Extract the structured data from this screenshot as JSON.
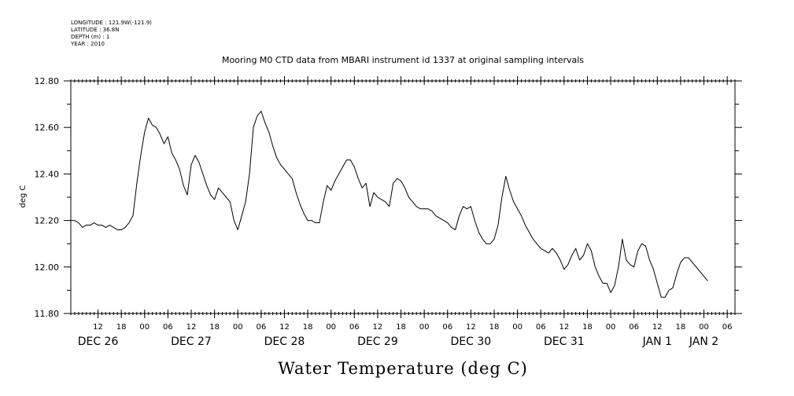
{
  "header": {
    "meta_lines": [
      "LONGITUDE : 121.9W(-121.9)",
      "LATITUDE : 36.8N",
      "DEPTH (m) : 1",
      "YEAR : 2010"
    ],
    "title": "Mooring M0 CTD data from MBARI instrument id 1337 at original sampling intervals"
  },
  "chart_data": {
    "type": "line",
    "title": "Mooring M0 CTD data from MBARI instrument id 1337 at original sampling intervals",
    "ylabel": "deg C",
    "xlabel": "Water Temperature (deg C)",
    "ylim": [
      11.8,
      12.8
    ],
    "yticks": [
      {
        "value": 12.8,
        "label": "12.80"
      },
      {
        "value": 12.6,
        "label": "12.60"
      },
      {
        "value": 12.4,
        "label": "12.40"
      },
      {
        "value": 12.2,
        "label": "12.20"
      },
      {
        "value": 12.0,
        "label": "12.00"
      },
      {
        "value": 11.8,
        "label": "11.80"
      }
    ],
    "xlim": [
      "2010-12-26 05:00",
      "2011-01-02 08:00"
    ],
    "hour_ticks": [
      {
        "t": "2010-12-26 12:00",
        "label": "12"
      },
      {
        "t": "2010-12-26 18:00",
        "label": "18"
      },
      {
        "t": "2010-12-27 00:00",
        "label": "00"
      },
      {
        "t": "2010-12-27 06:00",
        "label": "06"
      },
      {
        "t": "2010-12-27 12:00",
        "label": "12"
      },
      {
        "t": "2010-12-27 18:00",
        "label": "18"
      },
      {
        "t": "2010-12-28 00:00",
        "label": "00"
      },
      {
        "t": "2010-12-28 06:00",
        "label": "06"
      },
      {
        "t": "2010-12-28 12:00",
        "label": "12"
      },
      {
        "t": "2010-12-28 18:00",
        "label": "18"
      },
      {
        "t": "2010-12-29 00:00",
        "label": "00"
      },
      {
        "t": "2010-12-29 06:00",
        "label": "06"
      },
      {
        "t": "2010-12-29 12:00",
        "label": "12"
      },
      {
        "t": "2010-12-29 18:00",
        "label": "18"
      },
      {
        "t": "2010-12-30 00:00",
        "label": "00"
      },
      {
        "t": "2010-12-30 06:00",
        "label": "06"
      },
      {
        "t": "2010-12-30 12:00",
        "label": "12"
      },
      {
        "t": "2010-12-30 18:00",
        "label": "18"
      },
      {
        "t": "2010-12-31 00:00",
        "label": "00"
      },
      {
        "t": "2010-12-31 06:00",
        "label": "06"
      },
      {
        "t": "2010-12-31 12:00",
        "label": "12"
      },
      {
        "t": "2010-12-31 18:00",
        "label": "18"
      },
      {
        "t": "2011-01-01 00:00",
        "label": "00"
      },
      {
        "t": "2011-01-01 06:00",
        "label": "06"
      },
      {
        "t": "2011-01-01 12:00",
        "label": "12"
      },
      {
        "t": "2011-01-01 18:00",
        "label": "18"
      },
      {
        "t": "2011-01-02 00:00",
        "label": "00"
      },
      {
        "t": "2011-01-02 06:00",
        "label": "06"
      }
    ],
    "day_labels": [
      {
        "t": "2010-12-26 12:00",
        "label": "DEC 26"
      },
      {
        "t": "2010-12-27 12:00",
        "label": "DEC 27"
      },
      {
        "t": "2010-12-28 12:00",
        "label": "DEC 28"
      },
      {
        "t": "2010-12-29 12:00",
        "label": "DEC 29"
      },
      {
        "t": "2010-12-30 12:00",
        "label": "DEC 30"
      },
      {
        "t": "2010-12-31 12:00",
        "label": "DEC 31"
      },
      {
        "t": "2011-01-01 12:00",
        "label": "JAN 1"
      },
      {
        "t": "2011-01-02 00:00",
        "label": "JAN 2"
      }
    ],
    "grid": false,
    "series": [
      {
        "color": "#000000",
        "points": [
          [
            "2010-12-26 05:00",
            12.2
          ],
          [
            "2010-12-26 06:00",
            12.2
          ],
          [
            "2010-12-26 07:00",
            12.19
          ],
          [
            "2010-12-26 08:00",
            12.17
          ],
          [
            "2010-12-26 09:00",
            12.18
          ],
          [
            "2010-12-26 10:00",
            12.18
          ],
          [
            "2010-12-26 11:00",
            12.19
          ],
          [
            "2010-12-26 12:00",
            12.18
          ],
          [
            "2010-12-26 13:00",
            12.18
          ],
          [
            "2010-12-26 14:00",
            12.17
          ],
          [
            "2010-12-26 15:00",
            12.18
          ],
          [
            "2010-12-26 16:00",
            12.17
          ],
          [
            "2010-12-26 17:00",
            12.16
          ],
          [
            "2010-12-26 18:00",
            12.16
          ],
          [
            "2010-12-26 19:00",
            12.17
          ],
          [
            "2010-12-26 20:00",
            12.19
          ],
          [
            "2010-12-26 21:00",
            12.22
          ],
          [
            "2010-12-26 22:00",
            12.36
          ],
          [
            "2010-12-26 23:00",
            12.48
          ],
          [
            "2010-12-27 00:00",
            12.58
          ],
          [
            "2010-12-27 01:00",
            12.64
          ],
          [
            "2010-12-27 02:00",
            12.61
          ],
          [
            "2010-12-27 03:00",
            12.6
          ],
          [
            "2010-12-27 04:00",
            12.57
          ],
          [
            "2010-12-27 05:00",
            12.53
          ],
          [
            "2010-12-27 06:00",
            12.56
          ],
          [
            "2010-12-27 07:00",
            12.49
          ],
          [
            "2010-12-27 08:00",
            12.46
          ],
          [
            "2010-12-27 09:00",
            12.42
          ],
          [
            "2010-12-27 10:00",
            12.35
          ],
          [
            "2010-12-27 11:00",
            12.31
          ],
          [
            "2010-12-27 12:00",
            12.44
          ],
          [
            "2010-12-27 13:00",
            12.48
          ],
          [
            "2010-12-27 14:00",
            12.45
          ],
          [
            "2010-12-27 15:00",
            12.4
          ],
          [
            "2010-12-27 16:00",
            12.35
          ],
          [
            "2010-12-27 17:00",
            12.31
          ],
          [
            "2010-12-27 18:00",
            12.29
          ],
          [
            "2010-12-27 19:00",
            12.34
          ],
          [
            "2010-12-27 20:00",
            12.32
          ],
          [
            "2010-12-27 21:00",
            12.3
          ],
          [
            "2010-12-27 22:00",
            12.28
          ],
          [
            "2010-12-27 23:00",
            12.2
          ],
          [
            "2010-12-28 00:00",
            12.16
          ],
          [
            "2010-12-28 01:00",
            12.22
          ],
          [
            "2010-12-28 02:00",
            12.28
          ],
          [
            "2010-12-28 03:00",
            12.4
          ],
          [
            "2010-12-28 04:00",
            12.6
          ],
          [
            "2010-12-28 05:00",
            12.65
          ],
          [
            "2010-12-28 06:00",
            12.67
          ],
          [
            "2010-12-28 07:00",
            12.62
          ],
          [
            "2010-12-28 08:00",
            12.58
          ],
          [
            "2010-12-28 09:00",
            12.52
          ],
          [
            "2010-12-28 10:00",
            12.47
          ],
          [
            "2010-12-28 11:00",
            12.44
          ],
          [
            "2010-12-28 12:00",
            12.42
          ],
          [
            "2010-12-28 13:00",
            12.4
          ],
          [
            "2010-12-28 14:00",
            12.38
          ],
          [
            "2010-12-28 15:00",
            12.32
          ],
          [
            "2010-12-28 16:00",
            12.27
          ],
          [
            "2010-12-28 17:00",
            12.23
          ],
          [
            "2010-12-28 18:00",
            12.2
          ],
          [
            "2010-12-28 19:00",
            12.2
          ],
          [
            "2010-12-28 20:00",
            12.19
          ],
          [
            "2010-12-28 21:00",
            12.19
          ],
          [
            "2010-12-28 22:00",
            12.28
          ],
          [
            "2010-12-28 23:00",
            12.35
          ],
          [
            "2010-12-29 00:00",
            12.33
          ],
          [
            "2010-12-29 01:00",
            12.37
          ],
          [
            "2010-12-29 02:00",
            12.4
          ],
          [
            "2010-12-29 03:00",
            12.43
          ],
          [
            "2010-12-29 04:00",
            12.46
          ],
          [
            "2010-12-29 05:00",
            12.46
          ],
          [
            "2010-12-29 06:00",
            12.43
          ],
          [
            "2010-12-29 07:00",
            12.38
          ],
          [
            "2010-12-29 08:00",
            12.34
          ],
          [
            "2010-12-29 09:00",
            12.36
          ],
          [
            "2010-12-29 10:00",
            12.26
          ],
          [
            "2010-12-29 11:00",
            12.32
          ],
          [
            "2010-12-29 12:00",
            12.3
          ],
          [
            "2010-12-29 13:00",
            12.29
          ],
          [
            "2010-12-29 14:00",
            12.28
          ],
          [
            "2010-12-29 15:00",
            12.26
          ],
          [
            "2010-12-29 16:00",
            12.36
          ],
          [
            "2010-12-29 17:00",
            12.38
          ],
          [
            "2010-12-29 18:00",
            12.37
          ],
          [
            "2010-12-29 19:00",
            12.34
          ],
          [
            "2010-12-29 20:00",
            12.3
          ],
          [
            "2010-12-29 21:00",
            12.28
          ],
          [
            "2010-12-29 22:00",
            12.26
          ],
          [
            "2010-12-29 23:00",
            12.25
          ],
          [
            "2010-12-30 00:00",
            12.25
          ],
          [
            "2010-12-30 01:00",
            12.25
          ],
          [
            "2010-12-30 02:00",
            12.24
          ],
          [
            "2010-12-30 03:00",
            12.22
          ],
          [
            "2010-12-30 04:00",
            12.21
          ],
          [
            "2010-12-30 05:00",
            12.2
          ],
          [
            "2010-12-30 06:00",
            12.19
          ],
          [
            "2010-12-30 07:00",
            12.17
          ],
          [
            "2010-12-30 08:00",
            12.16
          ],
          [
            "2010-12-30 09:00",
            12.22
          ],
          [
            "2010-12-30 10:00",
            12.26
          ],
          [
            "2010-12-30 11:00",
            12.25
          ],
          [
            "2010-12-30 12:00",
            12.26
          ],
          [
            "2010-12-30 13:00",
            12.2
          ],
          [
            "2010-12-30 14:00",
            12.15
          ],
          [
            "2010-12-30 15:00",
            12.12
          ],
          [
            "2010-12-30 16:00",
            12.1
          ],
          [
            "2010-12-30 17:00",
            12.1
          ],
          [
            "2010-12-30 18:00",
            12.12
          ],
          [
            "2010-12-30 19:00",
            12.18
          ],
          [
            "2010-12-30 20:00",
            12.3
          ],
          [
            "2010-12-30 21:00",
            12.39
          ],
          [
            "2010-12-30 22:00",
            12.33
          ],
          [
            "2010-12-30 23:00",
            12.28
          ],
          [
            "2010-12-31 00:00",
            12.25
          ],
          [
            "2010-12-31 01:00",
            12.22
          ],
          [
            "2010-12-31 02:00",
            12.18
          ],
          [
            "2010-12-31 03:00",
            12.15
          ],
          [
            "2010-12-31 04:00",
            12.12
          ],
          [
            "2010-12-31 05:00",
            12.1
          ],
          [
            "2010-12-31 06:00",
            12.08
          ],
          [
            "2010-12-31 07:00",
            12.07
          ],
          [
            "2010-12-31 08:00",
            12.06
          ],
          [
            "2010-12-31 09:00",
            12.08
          ],
          [
            "2010-12-31 10:00",
            12.06
          ],
          [
            "2010-12-31 11:00",
            12.03
          ],
          [
            "2010-12-31 12:00",
            11.99
          ],
          [
            "2010-12-31 13:00",
            12.01
          ],
          [
            "2010-12-31 14:00",
            12.05
          ],
          [
            "2010-12-31 15:00",
            12.08
          ],
          [
            "2010-12-31 16:00",
            12.03
          ],
          [
            "2010-12-31 17:00",
            12.05
          ],
          [
            "2010-12-31 18:00",
            12.1
          ],
          [
            "2010-12-31 19:00",
            12.07
          ],
          [
            "2010-12-31 20:00",
            12.0
          ],
          [
            "2010-12-31 21:00",
            11.96
          ],
          [
            "2010-12-31 22:00",
            11.93
          ],
          [
            "2010-12-31 23:00",
            11.93
          ],
          [
            "2011-01-01 00:00",
            11.89
          ],
          [
            "2011-01-01 01:00",
            11.92
          ],
          [
            "2011-01-01 02:00",
            12.0
          ],
          [
            "2011-01-01 03:00",
            12.12
          ],
          [
            "2011-01-01 04:00",
            12.03
          ],
          [
            "2011-01-01 05:00",
            12.01
          ],
          [
            "2011-01-01 06:00",
            12.0
          ],
          [
            "2011-01-01 07:00",
            12.07
          ],
          [
            "2011-01-01 08:00",
            12.1
          ],
          [
            "2011-01-01 09:00",
            12.09
          ],
          [
            "2011-01-01 10:00",
            12.03
          ],
          [
            "2011-01-01 11:00",
            11.99
          ],
          [
            "2011-01-01 12:00",
            11.93
          ],
          [
            "2011-01-01 13:00",
            11.87
          ],
          [
            "2011-01-01 14:00",
            11.87
          ],
          [
            "2011-01-01 15:00",
            11.9
          ],
          [
            "2011-01-01 16:00",
            11.91
          ],
          [
            "2011-01-01 17:00",
            11.97
          ],
          [
            "2011-01-01 18:00",
            12.02
          ],
          [
            "2011-01-01 19:00",
            12.04
          ],
          [
            "2011-01-01 20:00",
            12.04
          ],
          [
            "2011-01-01 21:00",
            12.02
          ],
          [
            "2011-01-01 22:00",
            12.0
          ],
          [
            "2011-01-01 23:00",
            11.98
          ],
          [
            "2011-01-02 00:00",
            11.96
          ],
          [
            "2011-01-02 01:00",
            11.94
          ]
        ]
      }
    ]
  }
}
